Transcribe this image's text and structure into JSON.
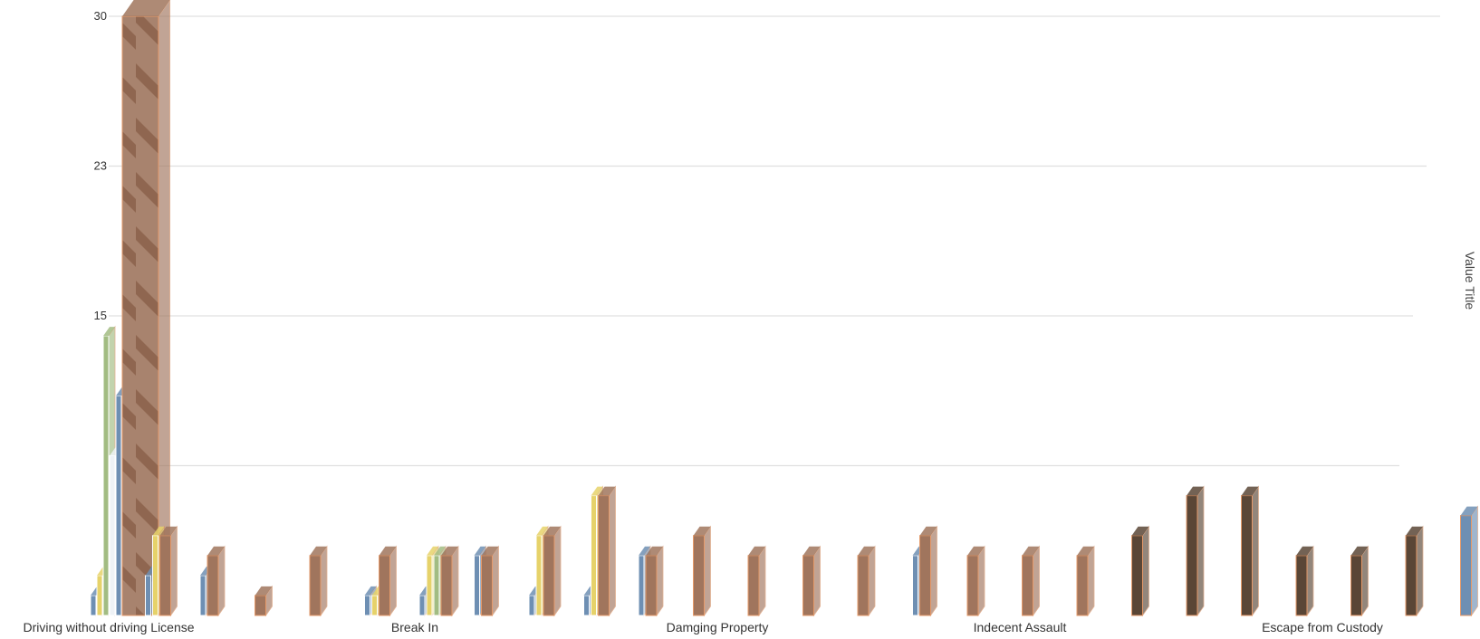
{
  "chart_data": {
    "type": "bar",
    "y_axis_title": "Value Title",
    "ylim": [
      0,
      30
    ],
    "y_ticks": [
      0,
      7.5,
      15,
      22.5,
      30
    ],
    "y_tick_labels": [
      "",
      "",
      "15",
      "23",
      "30"
    ],
    "grid": true,
    "category_labels": [
      "Driving without driving License",
      "Break In",
      "Damging Property",
      "Indecent Assault",
      "Escape from Custody"
    ],
    "groups": [
      {
        "values": [
          1,
          2,
          14,
          8,
          11,
          30
        ]
      },
      {
        "values": [
          2,
          4,
          4
        ]
      },
      {
        "values": [
          2,
          3
        ]
      },
      {
        "values": [
          1
        ]
      },
      {
        "values": [
          3
        ]
      },
      {
        "values": [
          1,
          1,
          3
        ]
      },
      {
        "values": [
          1,
          3,
          3,
          3
        ]
      },
      {
        "values": [
          3,
          3
        ]
      },
      {
        "values": [
          1,
          4,
          4
        ]
      },
      {
        "values": [
          1,
          6,
          6
        ]
      },
      {
        "values": [
          3,
          3
        ]
      },
      {
        "values": [
          4
        ]
      },
      {
        "values": [
          3
        ]
      },
      {
        "values": [
          3
        ]
      },
      {
        "values": [
          3
        ]
      },
      {
        "values": [
          3,
          4
        ]
      },
      {
        "values": [
          3
        ]
      },
      {
        "values": [
          3
        ]
      },
      {
        "values": [
          3
        ]
      },
      {
        "values": [
          4
        ]
      },
      {
        "values": [
          6
        ]
      },
      {
        "values": [
          6
        ]
      },
      {
        "values": [
          3
        ]
      },
      {
        "values": [
          3
        ]
      },
      {
        "values": [
          4
        ]
      },
      {
        "values": [
          5
        ]
      }
    ],
    "colors": {
      "blue": "#6e8fb3",
      "yellow": "#e6d26a",
      "green": "#a2bc82",
      "white": "#eef2f6",
      "brown": "#a0755d",
      "dark": "#5a4636"
    }
  }
}
